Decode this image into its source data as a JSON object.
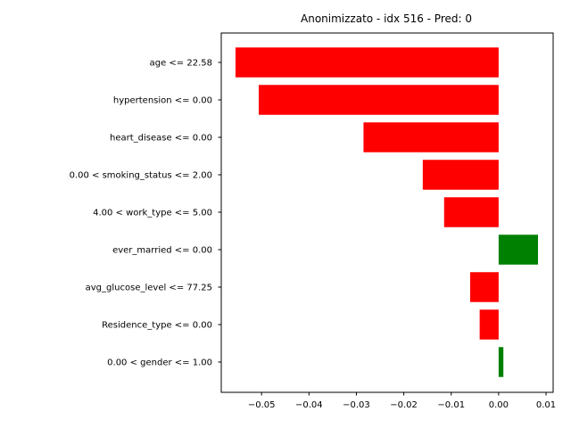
{
  "chart_data": {
    "type": "bar",
    "orientation": "horizontal",
    "title": "Anonimizzato - idx 516 - Pred: 0",
    "xlabel": "",
    "ylabel": "",
    "xlim": [
      -0.0585,
      0.0115
    ],
    "xticks": [
      -0.05,
      -0.04,
      -0.03,
      -0.02,
      -0.01,
      0.0,
      0.01
    ],
    "xtick_labels": [
      "−0.05",
      "−0.04",
      "−0.03",
      "−0.02",
      "−0.01",
      "0.00",
      "0.01"
    ],
    "grid": false,
    "categories": [
      "age <= 22.58",
      "hypertension <= 0.00",
      "heart_disease <= 0.00",
      "0.00 < smoking_status <= 2.00",
      "4.00 < work_type <= 5.00",
      "ever_married <= 0.00",
      "avg_glucose_level <= 77.25",
      "Residence_type <= 0.00",
      "0.00 < gender <= 1.00"
    ],
    "values": [
      -0.0555,
      -0.0506,
      -0.0285,
      -0.016,
      -0.0115,
      0.0083,
      -0.006,
      -0.004,
      0.001
    ],
    "colors": {
      "negative": "#ff0000",
      "positive": "#008000"
    }
  }
}
